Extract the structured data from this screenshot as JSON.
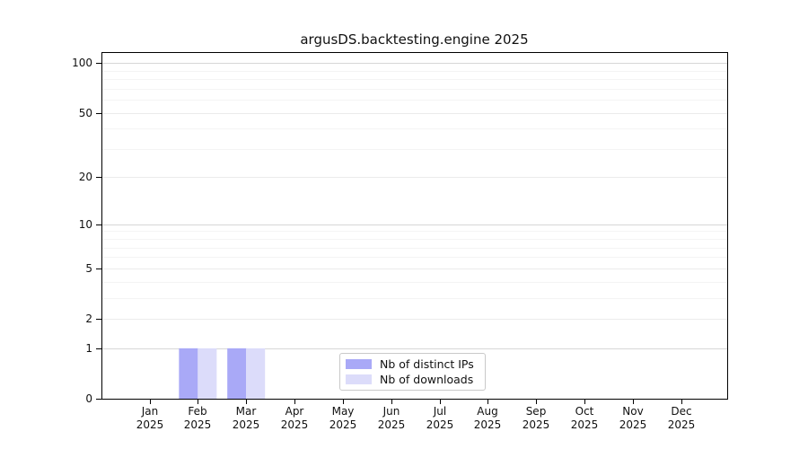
{
  "figure": {
    "title": "argusDS.backtesting.engine 2025"
  },
  "chart_data": {
    "type": "bar",
    "title": "argusDS.backtesting.engine 2025",
    "categories": [
      {
        "month": "Jan",
        "year": "2025"
      },
      {
        "month": "Feb",
        "year": "2025"
      },
      {
        "month": "Mar",
        "year": "2025"
      },
      {
        "month": "Apr",
        "year": "2025"
      },
      {
        "month": "May",
        "year": "2025"
      },
      {
        "month": "Jun",
        "year": "2025"
      },
      {
        "month": "Jul",
        "year": "2025"
      },
      {
        "month": "Aug",
        "year": "2025"
      },
      {
        "month": "Sep",
        "year": "2025"
      },
      {
        "month": "Oct",
        "year": "2025"
      },
      {
        "month": "Nov",
        "year": "2025"
      },
      {
        "month": "Dec",
        "year": "2025"
      }
    ],
    "series": [
      {
        "name": "Nb of distinct IPs",
        "color": "#a9a9f7",
        "values": [
          0,
          1,
          1,
          0,
          0,
          0,
          0,
          0,
          0,
          0,
          0,
          0
        ]
      },
      {
        "name": "Nb of downloads",
        "color": "#dcdcfa",
        "values": [
          0,
          1,
          1,
          0,
          0,
          0,
          0,
          0,
          0,
          0,
          0,
          0
        ]
      }
    ],
    "y_axis": {
      "scale": "log1p",
      "tick_values": [
        0,
        1,
        2,
        5,
        10,
        20,
        50,
        100
      ],
      "minor_grid_values": [
        3,
        4,
        6,
        7,
        8,
        9,
        30,
        40,
        60,
        70,
        80,
        90
      ],
      "range": [
        0,
        116
      ]
    },
    "x_axis": {
      "year": "2025"
    },
    "legend": {
      "position": "lower center",
      "entries": [
        "Nb of distinct IPs",
        "Nb of downloads"
      ]
    },
    "grid": "horizontal major + log minor gridlines",
    "colors": {
      "frame": "#000000",
      "grid_decade": "#d7d7d7",
      "grid_labeled": "#ebebeb",
      "grid_minor": "#f4f4f4",
      "text": "#111111",
      "background": "#ffffff"
    }
  }
}
